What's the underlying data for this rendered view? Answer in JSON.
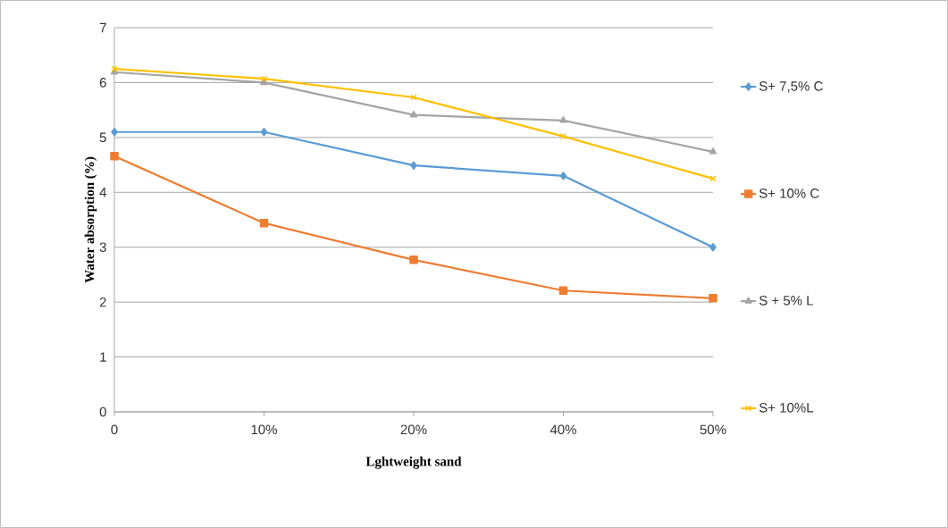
{
  "chart_data": {
    "type": "line",
    "xlabel": "Lghtweight sand",
    "ylabel": "Water absorption (%)",
    "categories": [
      "0",
      "10%",
      "20%",
      "40%",
      "50%"
    ],
    "ylim": [
      0,
      7
    ],
    "yticks": [
      0,
      1,
      2,
      3,
      4,
      5,
      6,
      7
    ],
    "grid": "y",
    "legend": "right",
    "series": [
      {
        "name": "S+ 7,5% C",
        "color": "#5b9bd5",
        "marker": "diamond",
        "values": [
          5.1,
          5.1,
          4.49,
          4.3,
          3.0
        ]
      },
      {
        "name": "S+ 10% C",
        "color": "#ed7d31",
        "marker": "square",
        "values": [
          4.66,
          3.44,
          2.77,
          2.21,
          2.07
        ]
      },
      {
        "name": "S + 5% L",
        "color": "#a5a5a5",
        "marker": "triangle",
        "values": [
          6.19,
          6.0,
          5.41,
          5.31,
          4.74
        ]
      },
      {
        "name": "S+ 10%L",
        "color": "#ffc000",
        "marker": "cross",
        "values": [
          6.25,
          6.07,
          5.73,
          5.02,
          4.25
        ]
      }
    ]
  }
}
